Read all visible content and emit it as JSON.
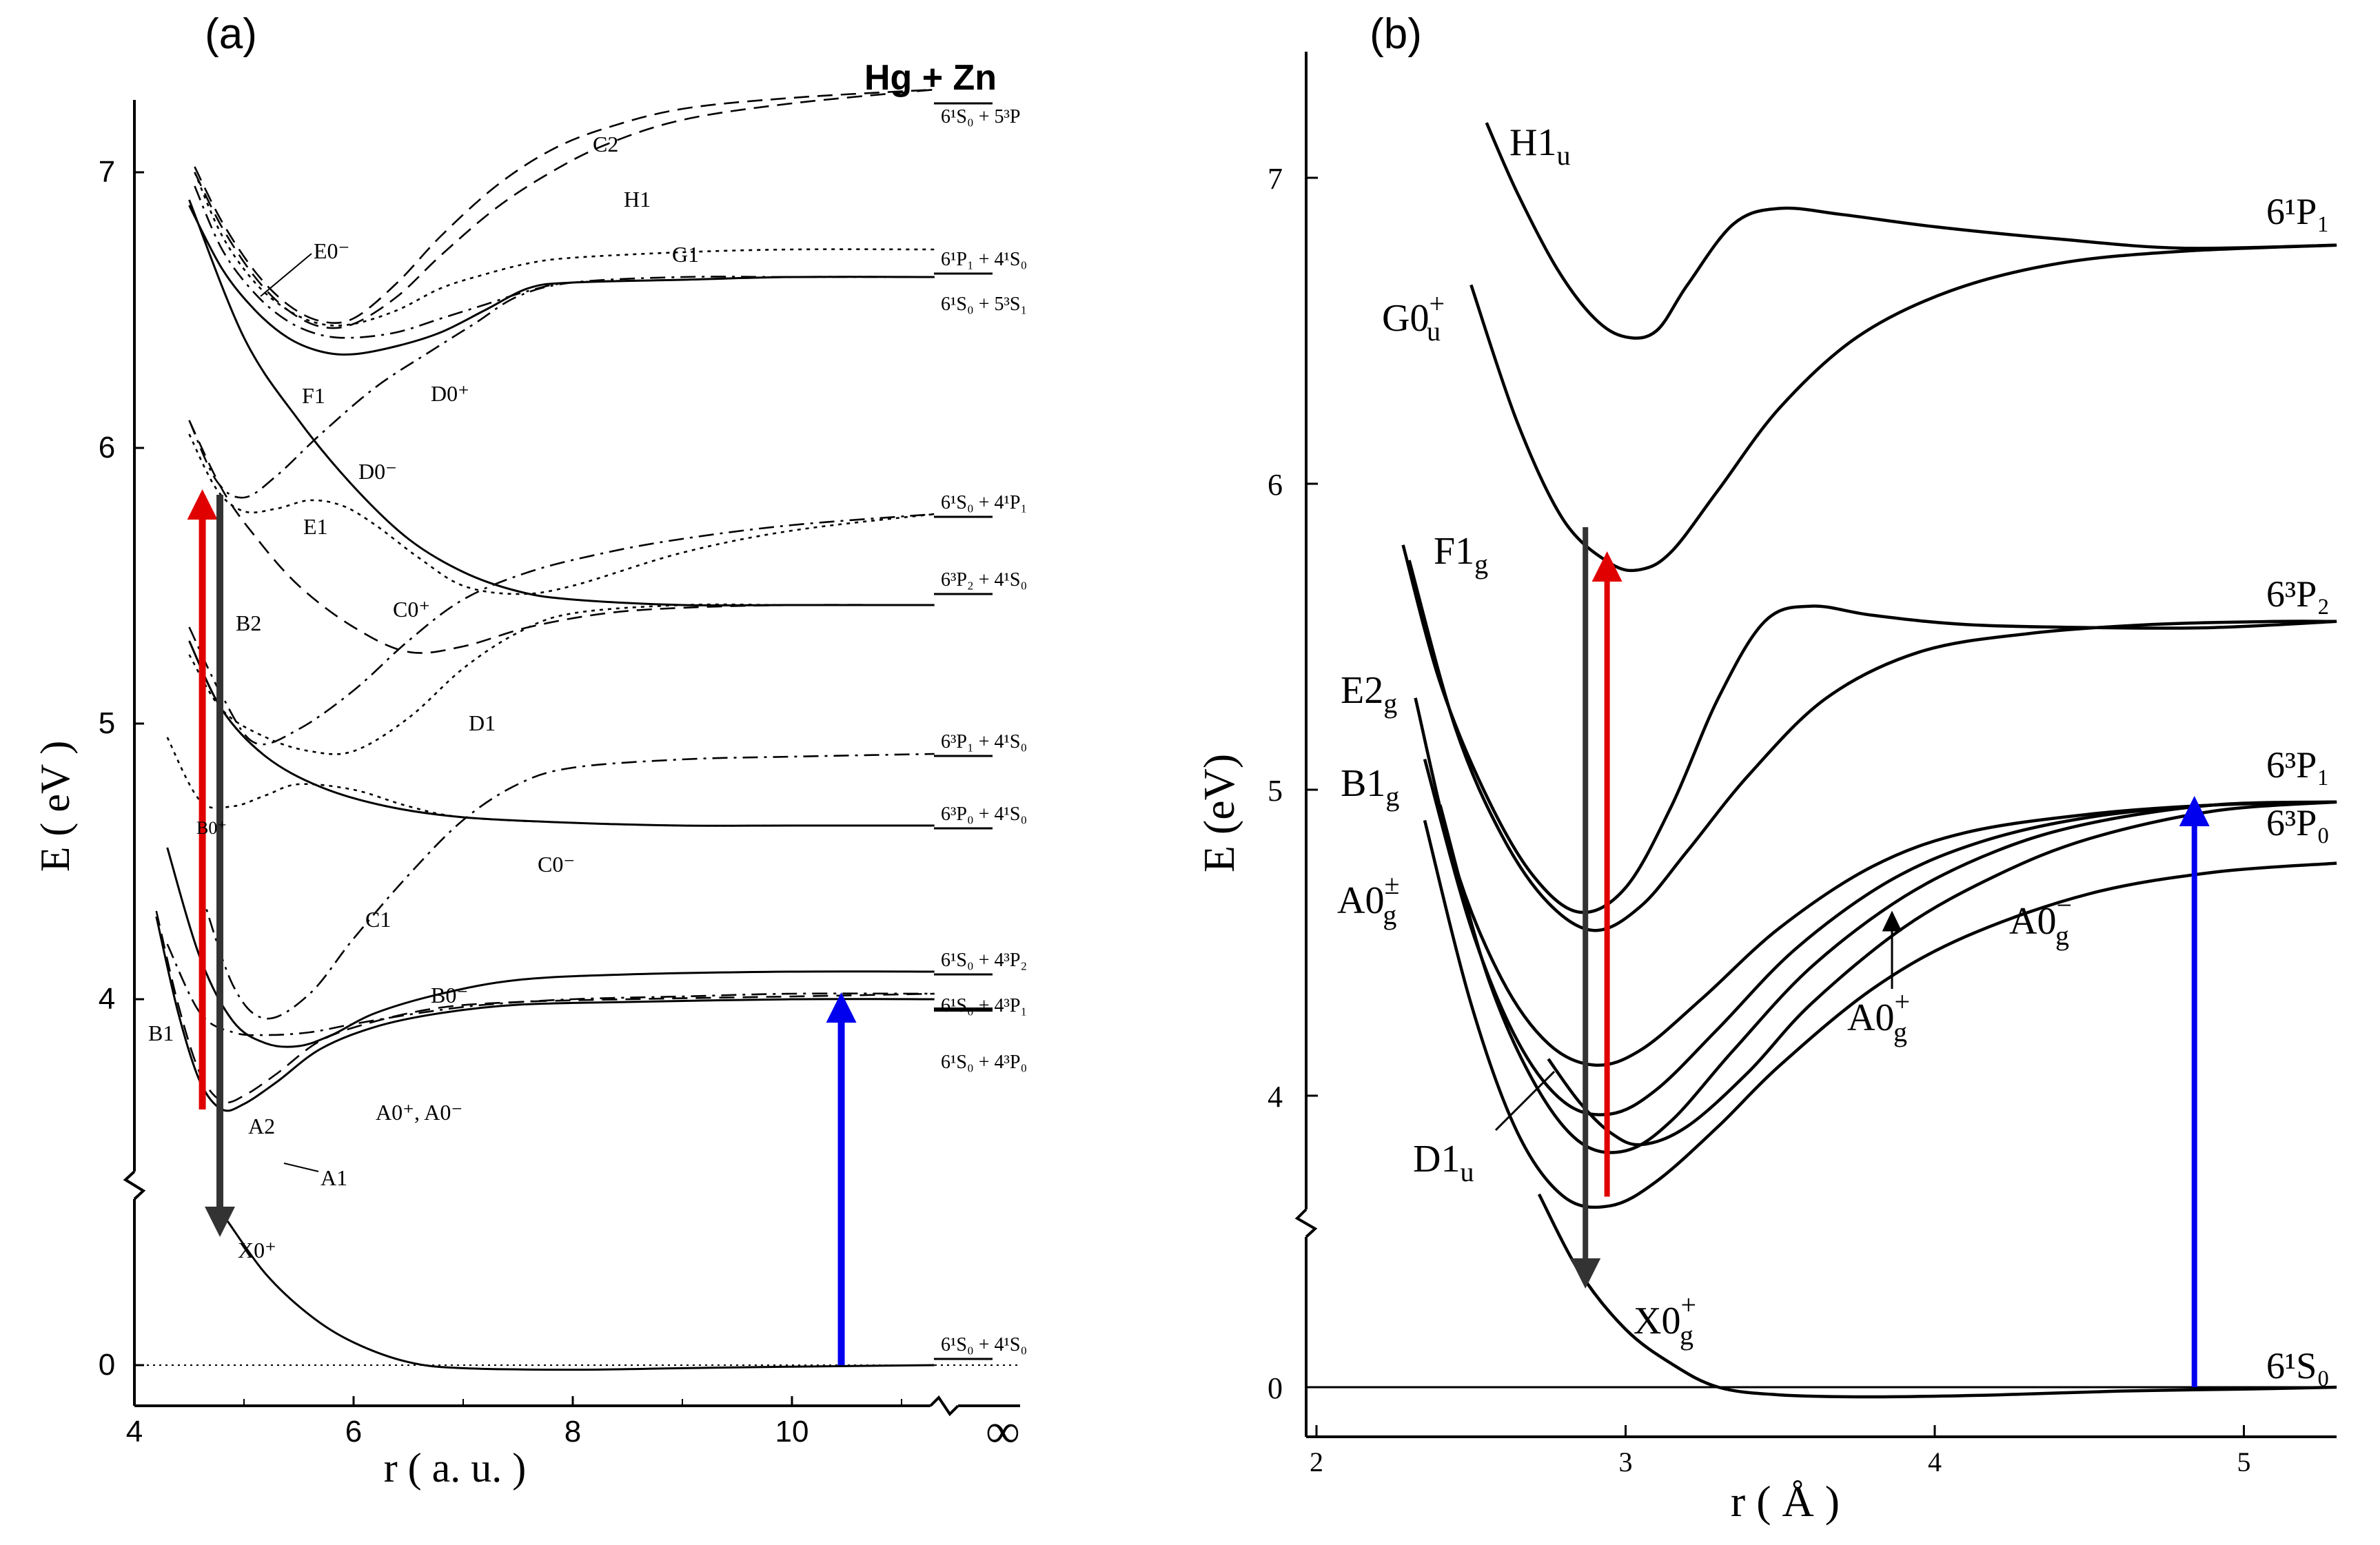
{
  "figure": {
    "panel_labels": [
      "(a)",
      "(b)"
    ]
  },
  "chart_data": [
    {
      "type": "line",
      "panel": "(a)",
      "title": "",
      "header": "Hg + Zn",
      "xlabel": "r ( a. u. )",
      "ylabel": "E ( eV )",
      "xlim": [
        4,
        11.3
      ],
      "ylim_upper": [
        3.35,
        7.35
      ],
      "axis_break": "broken y axis between 0 and ~3.5 eV; broken x axis at infinity",
      "x_ticks": [
        "4",
        "6",
        "8",
        "10",
        "∞"
      ],
      "y_ticks": [
        "0",
        "4",
        "5",
        "6",
        "7"
      ],
      "grid": false,
      "curve_labels": [
        "E0⁻",
        "F1",
        "D0⁺",
        "D0⁻",
        "C2",
        "H1",
        "G1",
        "E1",
        "B2",
        "C0⁺",
        "D1",
        "B0⁺",
        "C1",
        "C0⁻",
        "B0⁻",
        "B1",
        "A2",
        "A1",
        "A0⁺, A0⁻",
        "X0⁺"
      ],
      "asymptote_labels": [
        "6¹S₀ + 5³P",
        "6¹P₁ + 4¹S₀",
        "6¹S₀ + 5³S₁",
        "6¹S₀ + 4¹P₁",
        "6³P₂ + 4¹S₀",
        "6³P₁ + 4¹S₀",
        "6³P₀ + 4¹S₀",
        "6¹S₀ + 4³P₂",
        "6¹S₀ + 4³P₁",
        "6¹S₀ + 4³P₀",
        "6¹S₀ + 4¹S₀"
      ],
      "asymptote_energies_eV": [
        7.3,
        6.72,
        6.62,
        5.78,
        5.43,
        4.89,
        4.63,
        4.1,
        4.02,
        4.0,
        0
      ],
      "series": [
        {
          "label": "X0⁺",
          "style": "solid",
          "x": [
            4.85,
            5.2,
            5.6,
            6.0,
            6.5,
            7.0,
            8.0,
            9.0,
            10.0,
            11.3
          ],
          "y": [
            0.95,
            0.6,
            0.33,
            0.15,
            0.02,
            -0.02,
            -0.03,
            -0.02,
            -0.01,
            0
          ]
        },
        {
          "label": "A1",
          "style": "solid",
          "x": [
            4.2,
            4.4,
            4.6,
            4.8,
            5.0,
            5.3,
            5.7,
            6.2,
            6.8,
            7.5,
            8.5,
            10.0,
            11.3
          ],
          "y": [
            4.3,
            3.95,
            3.7,
            3.6,
            3.62,
            3.7,
            3.82,
            3.9,
            3.95,
            3.98,
            3.99,
            4.0,
            4.0
          ]
        },
        {
          "label": "A2",
          "style": "dashed",
          "x": [
            4.2,
            4.4,
            4.6,
            4.8,
            5.0,
            5.3,
            5.7,
            6.2,
            6.8,
            7.5,
            8.5,
            10.0,
            11.3
          ],
          "y": [
            4.32,
            3.98,
            3.73,
            3.63,
            3.65,
            3.73,
            3.85,
            3.92,
            3.97,
            3.99,
            4.0,
            4.01,
            4.02
          ]
        },
        {
          "label": "B0⁻",
          "style": "solid",
          "x": [
            4.3,
            4.6,
            4.9,
            5.2,
            5.5,
            5.8,
            6.2,
            6.8,
            7.5,
            8.5,
            10.0,
            11.3
          ],
          "y": [
            4.55,
            4.15,
            3.92,
            3.84,
            3.83,
            3.87,
            3.95,
            4.02,
            4.07,
            4.09,
            4.1,
            4.1
          ]
        },
        {
          "label": "B1",
          "style": "dashdot",
          "x": [
            4.3,
            4.6,
            4.9,
            5.2,
            5.6,
            6.0,
            6.6,
            7.2,
            8.0,
            9.0,
            10.0,
            11.3
          ],
          "y": [
            4.2,
            3.95,
            3.88,
            3.87,
            3.88,
            3.91,
            3.95,
            3.98,
            4.0,
            4.01,
            4.02,
            4.02
          ]
        },
        {
          "label": "C1",
          "style": "dashdot",
          "x": [
            4.6,
            4.9,
            5.2,
            5.6,
            6.0,
            6.5,
            7.0,
            7.5,
            8.0,
            9.0,
            10.0,
            11.3
          ],
          "y": [
            4.4,
            4.05,
            3.93,
            4.02,
            4.22,
            4.45,
            4.65,
            4.78,
            4.84,
            4.87,
            4.88,
            4.89
          ]
        },
        {
          "label": "C0⁻",
          "style": "solid",
          "x": [
            4.5,
            4.8,
            5.2,
            5.7,
            6.3,
            7.0,
            8.0,
            9.0,
            10.0,
            11.3
          ],
          "y": [
            5.3,
            5.05,
            4.88,
            4.77,
            4.7,
            4.66,
            4.64,
            4.63,
            4.63,
            4.63
          ]
        },
        {
          "label": "B0⁺",
          "style": "dotted",
          "x": [
            4.3,
            4.6,
            4.9,
            5.2,
            5.5,
            6.0,
            6.5,
            7.0,
            8.0,
            9.0,
            10.0,
            11.3
          ],
          "y": [
            4.95,
            4.72,
            4.7,
            4.74,
            4.78,
            4.76,
            4.7,
            4.66,
            4.64,
            4.63,
            4.63,
            4.63
          ]
        },
        {
          "label": "D1",
          "style": "dotted",
          "x": [
            4.5,
            4.8,
            5.2,
            5.6,
            6.0,
            6.5,
            7.0,
            7.5,
            8.0,
            9.0,
            10.0,
            11.3
          ],
          "y": [
            5.25,
            5.05,
            4.95,
            4.9,
            4.9,
            5.02,
            5.2,
            5.33,
            5.4,
            5.43,
            5.43,
            5.43
          ]
        },
        {
          "label": "C0⁺",
          "style": "dashdot",
          "x": [
            4.5,
            4.8,
            5.1,
            5.5,
            6.0,
            6.5,
            7.0,
            7.6,
            8.3,
            9.0,
            10.0,
            11.3
          ],
          "y": [
            5.35,
            5.1,
            4.93,
            4.98,
            5.12,
            5.3,
            5.45,
            5.55,
            5.62,
            5.67,
            5.72,
            5.76
          ]
        },
        {
          "label": "B2",
          "style": "dashed",
          "x": [
            4.5,
            4.8,
            5.1,
            5.5,
            6.0,
            6.5,
            7.0,
            7.6,
            8.3,
            9.0,
            10.0,
            11.3
          ],
          "y": [
            6.1,
            5.85,
            5.68,
            5.5,
            5.35,
            5.26,
            5.28,
            5.35,
            5.4,
            5.42,
            5.43,
            5.43
          ]
        },
        {
          "label": "E1",
          "style": "dotted",
          "x": [
            4.5,
            4.75,
            5.0,
            5.3,
            5.6,
            5.9,
            6.2,
            6.6,
            7.0,
            7.5,
            8.0,
            9.0,
            10.0,
            11.3
          ],
          "y": [
            6.05,
            5.85,
            5.77,
            5.78,
            5.81,
            5.79,
            5.72,
            5.6,
            5.5,
            5.47,
            5.5,
            5.62,
            5.7,
            5.76
          ]
        },
        {
          "label": "D0⁻",
          "style": "solid",
          "x": [
            4.5,
            5.0,
            5.5,
            6.0,
            6.5,
            7.0,
            7.5,
            8.0,
            9.0,
            10.0,
            11.3
          ],
          "y": [
            6.9,
            6.4,
            6.1,
            5.86,
            5.67,
            5.55,
            5.48,
            5.45,
            5.43,
            5.43,
            5.43
          ]
        },
        {
          "label": "D0⁺",
          "style": "dashdot",
          "x": [
            4.5,
            4.75,
            5.0,
            5.3,
            5.7,
            6.2,
            6.7,
            7.1,
            7.5,
            8.0,
            9.0,
            10.0,
            11.3
          ],
          "y": [
            6.1,
            5.88,
            5.82,
            5.9,
            6.05,
            6.22,
            6.35,
            6.45,
            6.55,
            6.6,
            6.62,
            6.62,
            6.62
          ]
        },
        {
          "label": "F1",
          "style": "solid",
          "x": [
            4.5,
            4.8,
            5.1,
            5.4,
            5.7,
            6.0,
            6.4,
            6.8,
            7.2,
            7.6,
            8.0,
            9.0,
            10.0,
            11.3
          ],
          "y": [
            6.88,
            6.65,
            6.5,
            6.4,
            6.35,
            6.34,
            6.37,
            6.42,
            6.5,
            6.58,
            6.6,
            6.61,
            6.62,
            6.62
          ]
        },
        {
          "label": "E0⁻",
          "style": "dashdot",
          "x": [
            4.55,
            4.8,
            5.1,
            5.4,
            5.7,
            6.0,
            6.4,
            6.8,
            7.2,
            7.6,
            8.0,
            9.0,
            10.0,
            11.3
          ],
          "y": [
            6.95,
            6.72,
            6.56,
            6.46,
            6.41,
            6.4,
            6.42,
            6.47,
            6.52,
            6.57,
            6.6,
            6.61,
            6.62,
            6.62
          ]
        },
        {
          "label": "G1",
          "style": "dotted",
          "x": [
            4.55,
            4.8,
            5.1,
            5.4,
            5.7,
            6.0,
            6.4,
            6.8,
            7.2,
            7.6,
            8.0,
            9.0,
            10.0,
            11.3
          ],
          "y": [
            7.0,
            6.77,
            6.6,
            6.5,
            6.45,
            6.45,
            6.5,
            6.58,
            6.63,
            6.67,
            6.69,
            6.71,
            6.72,
            6.72
          ]
        },
        {
          "label": "H1",
          "style": "dashed",
          "x": [
            4.55,
            4.8,
            5.1,
            5.4,
            5.7,
            6.0,
            6.4,
            6.8,
            7.3,
            7.8,
            8.3,
            9.0,
            10.0,
            11.3
          ],
          "y": [
            7.0,
            6.8,
            6.62,
            6.5,
            6.44,
            6.45,
            6.55,
            6.7,
            6.87,
            7.0,
            7.1,
            7.19,
            7.25,
            7.3
          ]
        },
        {
          "label": "C2",
          "style": "dashed",
          "x": [
            4.55,
            4.8,
            5.1,
            5.4,
            5.7,
            6.0,
            6.4,
            6.8,
            7.3,
            7.8,
            8.3,
            9.0,
            10.0,
            11.3
          ],
          "y": [
            7.02,
            6.82,
            6.64,
            6.52,
            6.46,
            6.47,
            6.6,
            6.77,
            6.95,
            7.08,
            7.16,
            7.23,
            7.27,
            7.3
          ]
        }
      ],
      "arrows": [
        {
          "color": "#e00000",
          "direction": "up",
          "x": 4.62,
          "from_eV": 3.6,
          "to_eV": 5.85
        },
        {
          "color": "#333333",
          "direction": "down",
          "x": 4.78,
          "from_eV": 5.83,
          "to_eV": 1.2
        },
        {
          "color": "#0000ee",
          "direction": "up",
          "x": 10.45,
          "from_eV": 0,
          "to_eV": 4.06
        }
      ]
    },
    {
      "type": "line",
      "panel": "(b)",
      "title": "",
      "xlabel": "r ( Å )",
      "ylabel": "E (eV)",
      "xlim": [
        1.95,
        5.3
      ],
      "ylim_upper": [
        3.45,
        7.4
      ],
      "axis_break": "broken y axis between 0 and ~3.5 eV",
      "x_ticks": [
        "2",
        "3",
        "4",
        "5"
      ],
      "y_ticks": [
        "0",
        "4",
        "5",
        "6",
        "7"
      ],
      "grid": false,
      "curve_labels": [
        "H1u",
        "G0u+",
        "F1g",
        "E2g",
        "B1g",
        "A0g±",
        "D1u",
        "A0g+",
        "A0g−",
        "X0g+"
      ],
      "asymptote_labels": [
        "6¹P₁",
        "6³P₂",
        "6³P₁",
        "6³P₀",
        "6¹S₀"
      ],
      "asymptote_energies_eV": [
        6.78,
        5.55,
        4.96,
        4.76,
        0
      ],
      "series": [
        {
          "label": "X0g+",
          "x": [
            2.72,
            2.85,
            3.0,
            3.15,
            3.3,
            3.5,
            3.8,
            4.2,
            4.6,
            5.0,
            5.3
          ],
          "y": [
            1.0,
            0.6,
            0.3,
            0.12,
            0.0,
            -0.04,
            -0.05,
            -0.04,
            -0.02,
            -0.01,
            0
          ]
        },
        {
          "label": "A0g−",
          "x": [
            2.35,
            2.5,
            2.65,
            2.8,
            2.95,
            3.1,
            3.3,
            3.5,
            3.8,
            4.1,
            4.5,
            4.9,
            5.3
          ],
          "y": [
            4.9,
            4.3,
            3.88,
            3.67,
            3.64,
            3.72,
            3.9,
            4.1,
            4.35,
            4.52,
            4.66,
            4.73,
            4.76
          ]
        },
        {
          "label": "D1u",
          "x": [
            2.75,
            2.85,
            2.95,
            3.05,
            3.2,
            3.4,
            3.6,
            3.9,
            4.2,
            4.5,
            4.9,
            5.3
          ],
          "y": [
            4.12,
            3.98,
            3.88,
            3.84,
            3.9,
            4.08,
            4.3,
            4.55,
            4.72,
            4.84,
            4.93,
            4.96
          ]
        },
        {
          "label": "A0g+",
          "x": [
            2.4,
            2.55,
            2.7,
            2.85,
            3.0,
            3.15,
            3.35,
            3.6,
            3.9,
            4.2,
            4.5,
            4.9,
            5.3
          ],
          "y": [
            4.95,
            4.4,
            4.05,
            3.85,
            3.82,
            3.92,
            4.15,
            4.42,
            4.65,
            4.8,
            4.89,
            4.95,
            4.96
          ]
        },
        {
          "label": "A0g±",
          "x": [
            2.35,
            2.5,
            2.65,
            2.8,
            2.95,
            3.1,
            3.3,
            3.55,
            3.85,
            4.15,
            4.5,
            4.9,
            5.3
          ],
          "y": [
            5.1,
            4.55,
            4.18,
            3.98,
            3.94,
            4.02,
            4.22,
            4.48,
            4.7,
            4.83,
            4.91,
            4.95,
            4.96
          ]
        },
        {
          "label": "B1g",
          "x": [
            2.32,
            2.45,
            2.6,
            2.75,
            2.9,
            3.05,
            3.25,
            3.5,
            3.8,
            4.1,
            4.5,
            4.9,
            5.3
          ],
          "y": [
            5.3,
            4.75,
            4.38,
            4.17,
            4.1,
            4.15,
            4.32,
            4.55,
            4.75,
            4.86,
            4.92,
            4.95,
            4.96
          ]
        },
        {
          "label": "E2g",
          "x": [
            2.3,
            2.45,
            2.6,
            2.75,
            2.9,
            3.05,
            3.2,
            3.4,
            3.65,
            3.95,
            4.3,
            4.7,
            5.1,
            5.3
          ],
          "y": [
            5.75,
            5.2,
            4.85,
            4.63,
            4.54,
            4.62,
            4.8,
            5.05,
            5.3,
            5.45,
            5.51,
            5.54,
            5.55,
            5.55
          ]
        },
        {
          "label": "F1g",
          "x": [
            2.28,
            2.4,
            2.55,
            2.7,
            2.85,
            3.0,
            3.15,
            3.3,
            3.45,
            3.6,
            3.8,
            4.1,
            4.5,
            4.9,
            5.3
          ],
          "y": [
            5.8,
            5.35,
            4.98,
            4.72,
            4.6,
            4.68,
            4.95,
            5.3,
            5.55,
            5.6,
            5.57,
            5.54,
            5.53,
            5.53,
            5.55
          ]
        },
        {
          "label": "G0u+",
          "x": [
            2.5,
            2.65,
            2.8,
            2.95,
            3.05,
            3.15,
            3.3,
            3.5,
            3.75,
            4.05,
            4.4,
            4.8,
            5.3
          ],
          "y": [
            6.65,
            6.2,
            5.88,
            5.74,
            5.72,
            5.78,
            5.98,
            6.25,
            6.48,
            6.63,
            6.72,
            6.76,
            6.78
          ]
        },
        {
          "label": "H1u",
          "x": [
            2.55,
            2.65,
            2.78,
            2.9,
            3.0,
            3.1,
            3.2,
            3.35,
            3.5,
            3.7,
            4.0,
            4.4,
            4.8,
            5.3
          ],
          "y": [
            7.18,
            6.95,
            6.7,
            6.54,
            6.48,
            6.5,
            6.65,
            6.85,
            6.9,
            6.88,
            6.84,
            6.8,
            6.77,
            6.78
          ]
        }
      ],
      "arrows": [
        {
          "color": "#e00000",
          "direction": "up",
          "x": 2.94,
          "from_eV": 3.67,
          "to_eV": 5.73
        },
        {
          "color": "#333333",
          "direction": "down",
          "x": 2.87,
          "from_eV": 5.83,
          "to_eV": 0.8
        },
        {
          "color": "#0000ee",
          "direction": "up",
          "x": 4.84,
          "from_eV": 0,
          "to_eV": 4.95
        }
      ]
    }
  ]
}
